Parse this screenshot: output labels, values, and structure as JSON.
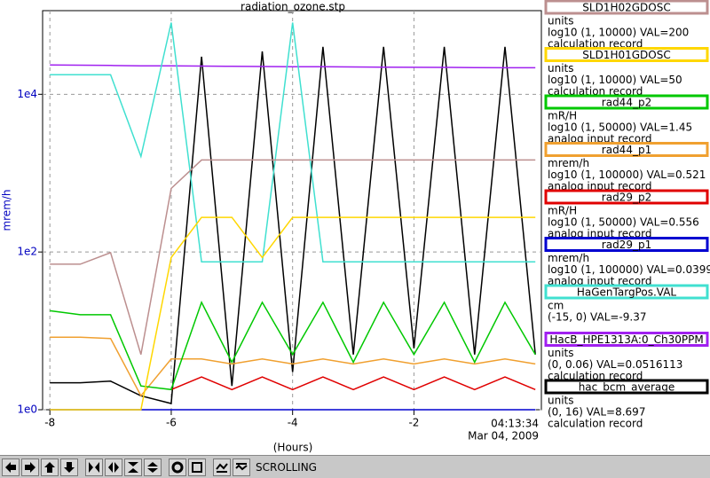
{
  "chart_data": {
    "type": "line",
    "title": "radiation_ozone.stp",
    "y_label": "mrem/h",
    "x_label": "(Hours)",
    "time_label": [
      "04:13:34",
      "Mar 04, 2009"
    ],
    "log_y": true,
    "grid": true,
    "xlim": [
      -8.12,
      0.1
    ],
    "xticks": [
      -8,
      -6,
      -4,
      -2
    ],
    "ylim": [
      1,
      115000
    ],
    "yticks": [
      {
        "value": 1,
        "label": "1e0"
      },
      {
        "value": 100,
        "label": "1e2"
      },
      {
        "value": 10000,
        "label": "1e4"
      }
    ],
    "x": [
      -8,
      -7.5,
      -7,
      -6.5,
      -6,
      -5.5,
      -5,
      -4.5,
      -4,
      -3.5,
      -3,
      -2.5,
      -2,
      -1.5,
      -1,
      -0.5,
      0
    ],
    "series": [
      {
        "name": "SLD1H02GDOSC",
        "color": "#bc8f8f",
        "units": "units",
        "range": "log10 (1, 10000) VAL=200",
        "record": "calculation record",
        "values": [
          70,
          70,
          98,
          5,
          640,
          1470,
          1470,
          1470,
          1470,
          1470,
          1470,
          1470,
          1470,
          1470,
          1470,
          1470,
          1470
        ]
      },
      {
        "name": "SLD1H01GDOSC",
        "color": "#ffd700",
        "units": "units",
        "range": "log10 (1, 10000) VAL=50",
        "record": "calculation record",
        "values": [
          1,
          1,
          1,
          1,
          85,
          275,
          275,
          85,
          275,
          275,
          275,
          275,
          275,
          275,
          275,
          275,
          275
        ]
      },
      {
        "name": "rad44_p2",
        "color": "#00c800",
        "units": "mR/H",
        "range": "log10 (1, 50000) VAL=1.45",
        "record": "analog input record",
        "values": [
          18,
          16,
          16,
          2,
          1.8,
          23,
          4,
          23,
          5,
          23,
          4,
          23,
          5,
          23,
          4,
          23,
          5
        ]
      },
      {
        "name": "rad44_p1",
        "color": "#f0a030",
        "units": "mrem/h",
        "range": "log10 (1, 100000) VAL=0.521",
        "record": "analog input record",
        "values": [
          8.3,
          8.3,
          8,
          1.5,
          4.4,
          4.4,
          3.8,
          4.4,
          3.8,
          4.4,
          3.8,
          4.4,
          3.8,
          4.4,
          3.8,
          4.4,
          3.8
        ]
      },
      {
        "name": "rad29_p2",
        "color": "#e00000",
        "units": "mR/H",
        "range": "log10 (1, 50000) VAL=0.556",
        "record": "analog input record",
        "values": [
          null,
          null,
          null,
          null,
          1.8,
          2.6,
          1.8,
          2.6,
          1.8,
          2.6,
          1.8,
          2.6,
          1.8,
          2.6,
          1.8,
          2.6,
          1.8
        ]
      },
      {
        "name": "rad29_p1",
        "color": "#0000d0",
        "units": "mrem/h",
        "range": "log10 (1, 100000) VAL=0.0399",
        "record": "analog input record",
        "values": [
          1,
          1,
          1,
          1,
          1,
          1,
          1,
          1,
          1,
          1,
          1,
          1,
          1,
          1,
          1,
          1,
          1
        ]
      },
      {
        "name": "HaGenTargPos.VAL",
        "color": "#40e0d0",
        "units": "cm",
        "range": "(-15, 0) VAL=-9.37",
        "record": "",
        "values": [
          17700,
          17700,
          17700,
          1630,
          81000,
          75,
          75,
          75,
          81000,
          75,
          75,
          75,
          75,
          75,
          75,
          75,
          75
        ]
      },
      {
        "name": "HacB_HPE1313A:0_Ch30PPM",
        "color": "#a020f0",
        "units": "units",
        "range": "(0, 0.06) VAL=0.0516113",
        "record": "calculation record",
        "values": [
          23600,
          23400,
          23200,
          23000,
          23000,
          22800,
          22600,
          22500,
          22400,
          22300,
          22200,
          22100,
          22000,
          21900,
          21800,
          21700,
          21700
        ]
      },
      {
        "name": "hac_bcm_average",
        "color": "#000000",
        "units": "units",
        "range": "(0, 16) VAL=8.697",
        "record": "calculation record",
        "values": [
          2.2,
          2.2,
          2.3,
          1.5,
          1.2,
          30000,
          2,
          35000,
          3,
          40000,
          5,
          40000,
          6,
          40000,
          5,
          40000,
          5
        ]
      }
    ]
  },
  "toolbar": {
    "status": "SCROLLING"
  }
}
